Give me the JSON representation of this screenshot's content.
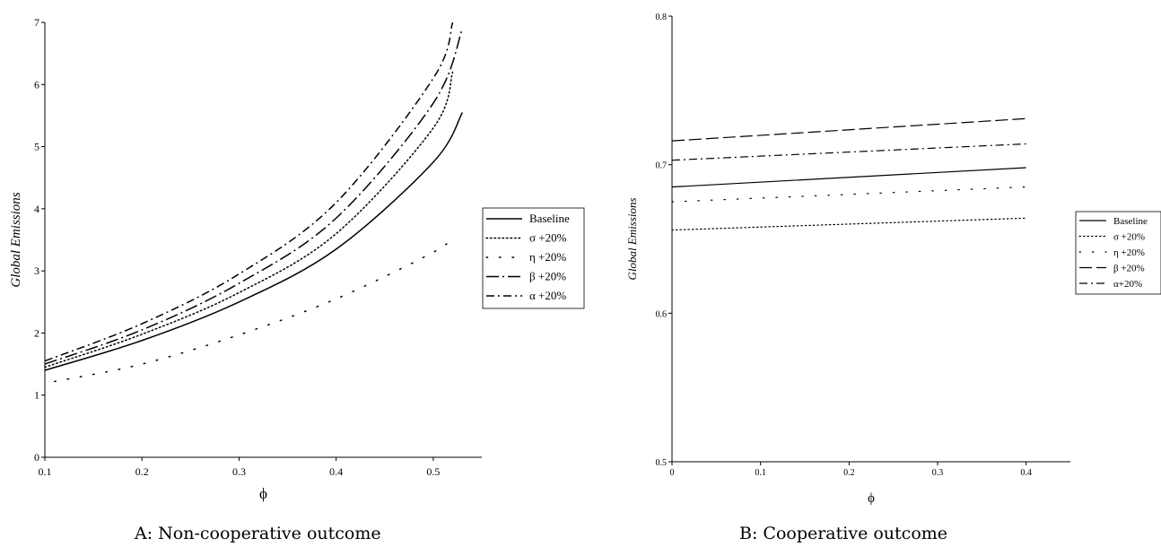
{
  "chart_data": [
    {
      "type": "line",
      "caption": "A: Non-cooperative outcome",
      "xlabel": "ϕ",
      "ylabel": "Global Emissions",
      "xlim": [
        0.1,
        0.55
      ],
      "ylim": [
        0,
        7
      ],
      "xticks": [
        "0.1",
        "0.2",
        "0.3",
        "0.4",
        "0.5"
      ],
      "yticks": [
        "0",
        "1",
        "2",
        "3",
        "4",
        "5",
        "6",
        "7"
      ],
      "legend_position": "right",
      "series": [
        {
          "name": "Baseline",
          "style": "solid",
          "x": [
            0.1,
            0.2,
            0.3,
            0.4,
            0.5,
            0.53
          ],
          "values": [
            1.4,
            1.88,
            2.5,
            3.35,
            4.75,
            5.55
          ]
        },
        {
          "name": "σ +20%",
          "style": "dotted",
          "x": [
            0.1,
            0.2,
            0.3,
            0.4,
            0.5,
            0.52
          ],
          "values": [
            1.45,
            1.98,
            2.65,
            3.6,
            5.3,
            6.2
          ]
        },
        {
          "name": "η +20%",
          "style": "sparse-dotted",
          "x": [
            0.11,
            0.2,
            0.3,
            0.4,
            0.5,
            0.52
          ],
          "values": [
            1.22,
            1.5,
            1.97,
            2.55,
            3.3,
            3.55
          ]
        },
        {
          "name": "β +20%",
          "style": "long-dash-dot",
          "x": [
            0.1,
            0.2,
            0.3,
            0.4,
            0.5,
            0.53
          ],
          "values": [
            1.5,
            2.05,
            2.8,
            3.85,
            5.7,
            6.9
          ]
        },
        {
          "name": "α +20%",
          "style": "dash-dot",
          "x": [
            0.1,
            0.2,
            0.3,
            0.4,
            0.5,
            0.52
          ],
          "values": [
            1.55,
            2.15,
            2.95,
            4.1,
            6.1,
            7.0
          ]
        }
      ]
    },
    {
      "type": "line",
      "caption": "B: Cooperative outcome",
      "xlabel": "ϕ",
      "ylabel": "Global Emissions",
      "xlim": [
        0,
        0.45
      ],
      "ylim": [
        0.5,
        0.8
      ],
      "xticks": [
        "0",
        "0.1",
        "0.2",
        "0.3",
        "0.4"
      ],
      "yticks": [
        "0.5",
        "0.6",
        "0.7",
        "0.8"
      ],
      "legend_position": "right",
      "series": [
        {
          "name": "Baseline",
          "style": "solid",
          "x": [
            0,
            0.4
          ],
          "values": [
            0.685,
            0.698
          ]
        },
        {
          "name": "σ +20%",
          "style": "dotted",
          "x": [
            0,
            0.4
          ],
          "values": [
            0.656,
            0.664
          ]
        },
        {
          "name": "η +20%",
          "style": "sparse-dotted",
          "x": [
            0,
            0.4
          ],
          "values": [
            0.675,
            0.685
          ]
        },
        {
          "name": "β +20%",
          "style": "long-dash",
          "x": [
            0,
            0.4
          ],
          "values": [
            0.716,
            0.731
          ]
        },
        {
          "name": "α+20%",
          "style": "dash-dot",
          "x": [
            0,
            0.4
          ],
          "values": [
            0.703,
            0.714
          ]
        }
      ]
    }
  ]
}
